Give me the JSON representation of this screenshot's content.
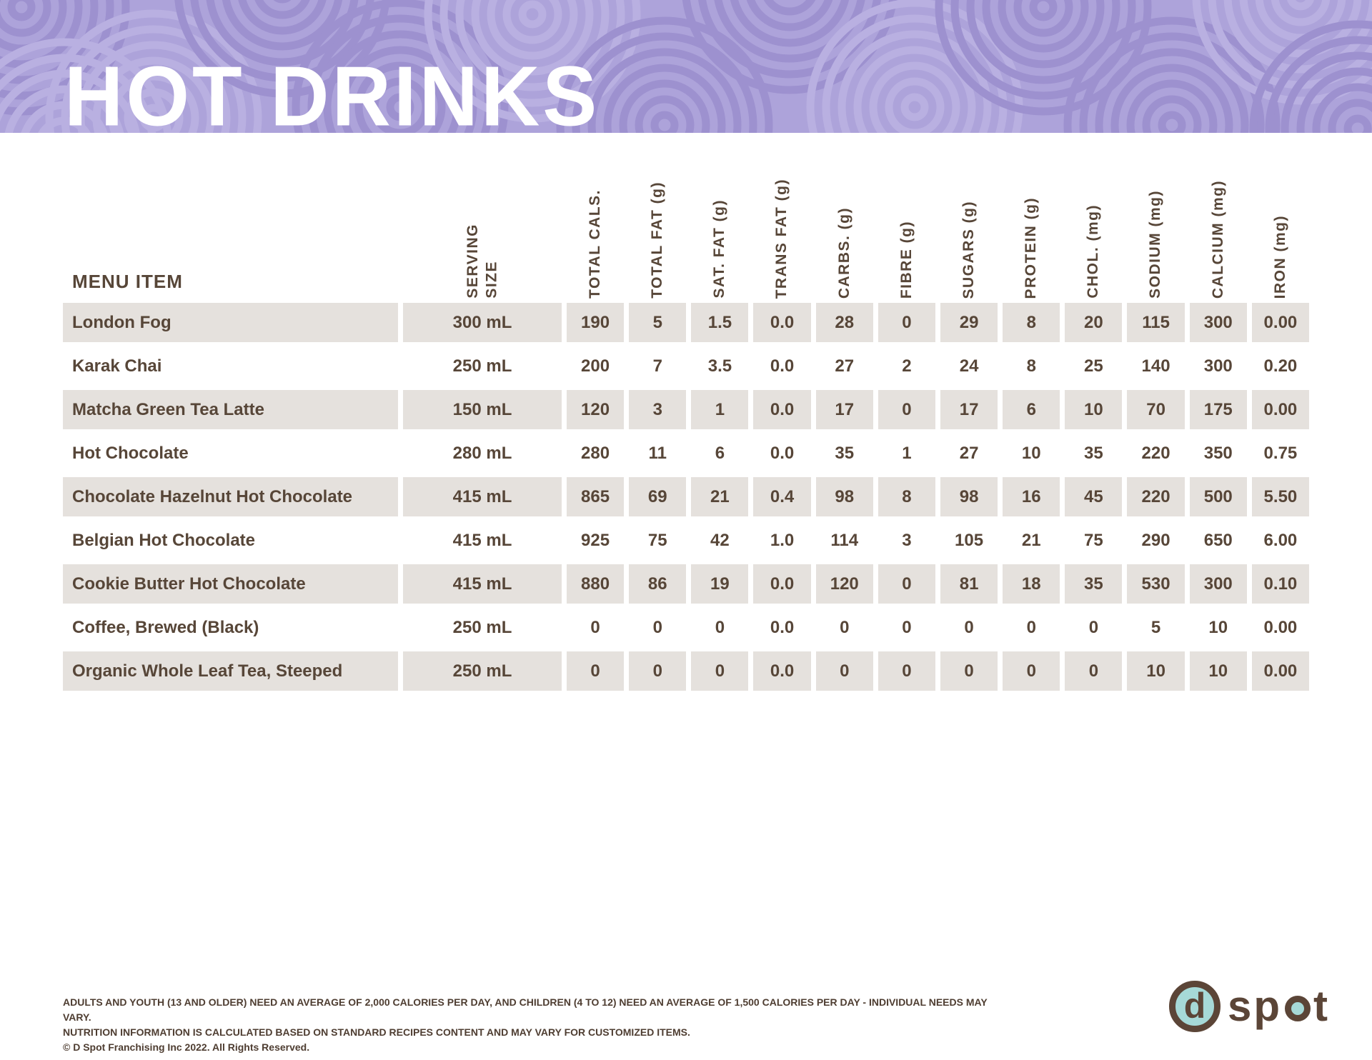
{
  "header": {
    "title": "HOT DRINKS"
  },
  "table": {
    "menu_item_header": "MENU ITEM",
    "column_headers": [
      "SERVING\nSIZE",
      "TOTAL CALS.",
      "TOTAL FAT (g)",
      "SAT. FAT (g)",
      "TRANS FAT (g)",
      "CARBS. (g)",
      "FIBRE (g)",
      "SUGARS (g)",
      "PROTEIN (g)",
      "CHOL. (mg)",
      "SODIUM (mg)",
      "CALCIUM (mg)",
      "IRON (mg)"
    ],
    "rows": [
      {
        "name": "London Fog",
        "serving_size": "300 mL",
        "values": [
          "190",
          "5",
          "1.5",
          "0.0",
          "28",
          "0",
          "29",
          "8",
          "20",
          "115",
          "300",
          "0.00"
        ]
      },
      {
        "name": "Karak Chai",
        "serving_size": "250 mL",
        "values": [
          "200",
          "7",
          "3.5",
          "0.0",
          "27",
          "2",
          "24",
          "8",
          "25",
          "140",
          "300",
          "0.20"
        ]
      },
      {
        "name": "Matcha Green Tea Latte",
        "serving_size": "150 mL",
        "values": [
          "120",
          "3",
          "1",
          "0.0",
          "17",
          "0",
          "17",
          "6",
          "10",
          "70",
          "175",
          "0.00"
        ]
      },
      {
        "name": "Hot Chocolate",
        "serving_size": "280 mL",
        "values": [
          "280",
          "11",
          "6",
          "0.0",
          "35",
          "1",
          "27",
          "10",
          "35",
          "220",
          "350",
          "0.75"
        ]
      },
      {
        "name": "Chocolate Hazelnut Hot Chocolate",
        "serving_size": "415 mL",
        "values": [
          "865",
          "69",
          "21",
          "0.4",
          "98",
          "8",
          "98",
          "16",
          "45",
          "220",
          "500",
          "5.50"
        ]
      },
      {
        "name": "Belgian Hot Chocolate",
        "serving_size": "415 mL",
        "values": [
          "925",
          "75",
          "42",
          "1.0",
          "114",
          "3",
          "105",
          "21",
          "75",
          "290",
          "650",
          "6.00"
        ]
      },
      {
        "name": "Cookie Butter Hot Chocolate",
        "serving_size": "415 mL",
        "values": [
          "880",
          "86",
          "19",
          "0.0",
          "120",
          "0",
          "81",
          "18",
          "35",
          "530",
          "300",
          "0.10"
        ]
      },
      {
        "name": "Coffee, Brewed (Black)",
        "serving_size": "250 mL",
        "values": [
          "0",
          "0",
          "0",
          "0.0",
          "0",
          "0",
          "0",
          "0",
          "0",
          "5",
          "10",
          "0.00"
        ]
      },
      {
        "name": "Organic Whole Leaf Tea, Steeped",
        "serving_size": "250 mL",
        "values": [
          "0",
          "0",
          "0",
          "0.0",
          "0",
          "0",
          "0",
          "0",
          "0",
          "10",
          "10",
          "0.00"
        ]
      }
    ]
  },
  "footer": {
    "disclaimer_line1": "ADULTS AND YOUTH (13 AND OLDER) NEED AN AVERAGE OF 2,000 CALORIES PER DAY, AND CHILDREN (4 TO 12) NEED AN AVERAGE OF 1,500 CALORIES PER DAY - INDIVIDUAL NEEDS MAY VARY.",
    "disclaimer_line2": "NUTRITION INFORMATION IS CALCULATED BASED ON STANDARD RECIPES CONTENT AND MAY VARY FOR CUSTOMIZED ITEMS.",
    "copyright": "© D Spot Franchising Inc 2022. All Rights Reserved."
  },
  "logo": {
    "initial": "d",
    "word_start": "sp",
    "word_end": "t"
  },
  "colors": {
    "band_purple": "#ada3da",
    "swirl_dark": "#9d91cf",
    "swirl_light": "#b9b0e1",
    "row_stripe": "#e5e1dd",
    "table_text_brown": "#574638",
    "footer_brown": "#4e3d31",
    "logo_brown": "#5b4537",
    "logo_teal": "#a6d9d7",
    "title_white": "#ffffff"
  }
}
